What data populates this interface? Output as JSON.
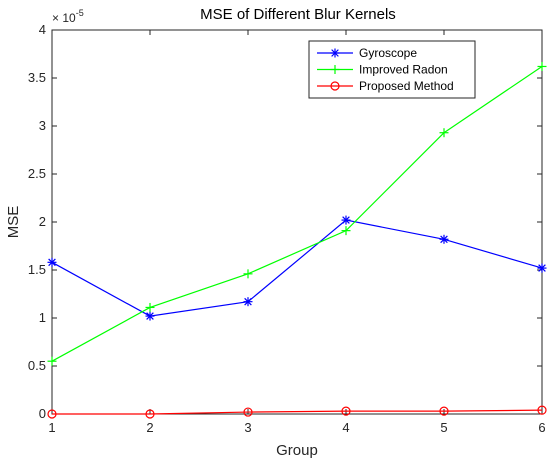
{
  "chart_data": {
    "type": "line",
    "title": "MSE of Different Blur Kernels",
    "xlabel": "Group",
    "ylabel": "MSE",
    "y_exponent_label": "× 10",
    "y_exponent_power": "-5",
    "x": [
      1,
      2,
      3,
      4,
      5,
      6
    ],
    "xlim": [
      1,
      6
    ],
    "ylim": [
      0,
      4
    ],
    "xticks": [
      "1",
      "2",
      "3",
      "4",
      "5",
      "6"
    ],
    "yticks": [
      "0",
      "0.5",
      "1",
      "1.5",
      "2",
      "2.5",
      "3",
      "3.5",
      "4"
    ],
    "grid": false,
    "legend_position": "top-right",
    "series": [
      {
        "name": "Gyroscope",
        "color": "#0000ff",
        "marker": "asterisk",
        "values": [
          1.58,
          1.02,
          1.17,
          2.02,
          1.82,
          1.52
        ]
      },
      {
        "name": "Improved Radon",
        "color": "#00ff00",
        "marker": "plus",
        "values": [
          0.55,
          1.11,
          1.46,
          1.91,
          2.93,
          3.62
        ]
      },
      {
        "name": "Proposed Method",
        "color": "#ff0000",
        "marker": "circle",
        "values": [
          0.0,
          0.0,
          0.02,
          0.03,
          0.03,
          0.04
        ]
      }
    ]
  }
}
